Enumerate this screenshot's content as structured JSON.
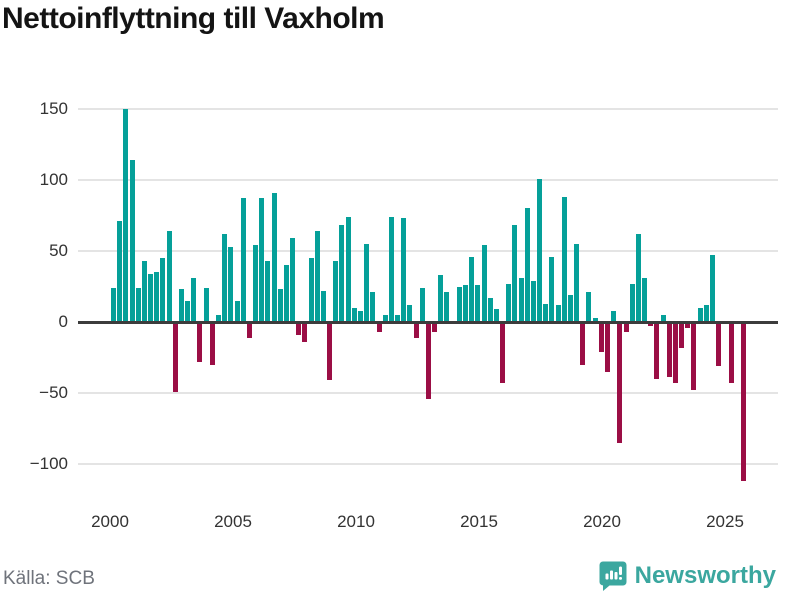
{
  "title": "Nettoinflyttning till Vaxholm",
  "source": "Källa: SCB",
  "branding": {
    "logo_text": "Newsworthy",
    "logo_icon": "bar-chart-speech-bubble-icon"
  },
  "colors": {
    "positive_bar": "#05a099",
    "negative_bar": "#9b0e45",
    "grid": "#e4e4e4",
    "axis": "#3c3c3c",
    "title_text": "#141414",
    "tick_text": "#333333",
    "source_text": "#6f737b",
    "brand_teal": "#3ba79f"
  },
  "chart_data": {
    "type": "bar",
    "title": "Nettoinflyttning till Vaxholm",
    "xlabel": "",
    "ylabel": "",
    "frequency": "quarterly",
    "start_period": "2000-Q1",
    "end_period": "2025-Q3",
    "x_tick_labels": [
      "2000",
      "2005",
      "2010",
      "2015",
      "2020",
      "2025"
    ],
    "y_ticks": [
      150,
      100,
      50,
      0,
      -50,
      -100
    ],
    "y_tick_labels": [
      "150",
      "100",
      "50",
      "0",
      "−50",
      "−100"
    ],
    "ylim": [
      -125,
      160
    ],
    "grid": true,
    "legend": false,
    "values": [
      24,
      71,
      150,
      114,
      24,
      43,
      34,
      35,
      45,
      64,
      -49,
      23,
      15,
      31,
      -28,
      24,
      -30,
      5,
      62,
      53,
      15,
      87,
      -11,
      54,
      87,
      43,
      91,
      23,
      40,
      59,
      -9,
      -14,
      45,
      64,
      22,
      -41,
      43,
      68,
      74,
      10,
      8,
      55,
      21,
      -7,
      5,
      74,
      5,
      73,
      12,
      -11,
      24,
      -54,
      -7,
      33,
      21,
      0,
      25,
      26,
      46,
      26,
      54,
      17,
      9,
      -43,
      27,
      68,
      31,
      80,
      29,
      101,
      13,
      46,
      12,
      88,
      19,
      55,
      -30,
      21,
      3,
      -21,
      -35,
      8,
      -85,
      -7,
      27,
      62,
      31,
      -3,
      -40,
      5,
      -39,
      -43,
      -18,
      -4,
      -48,
      10,
      12,
      47,
      -31,
      0,
      -43,
      0,
      -112
    ]
  }
}
